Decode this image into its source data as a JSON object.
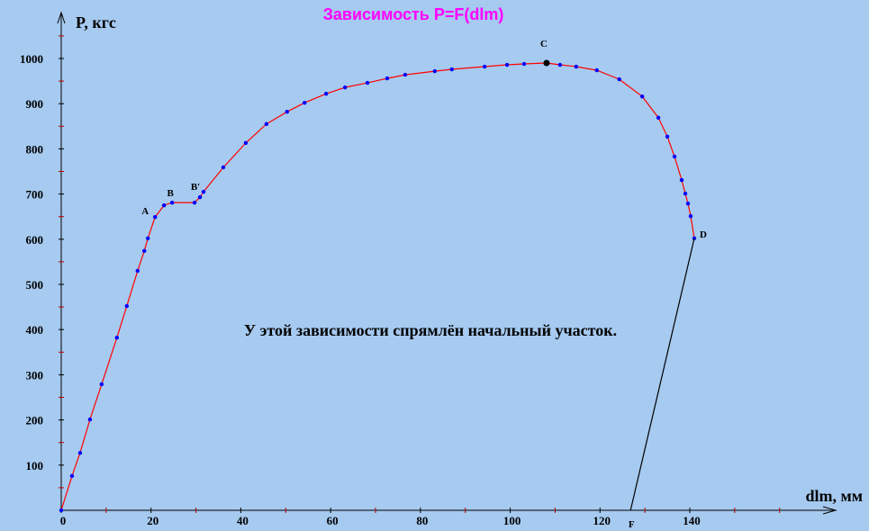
{
  "chart_data": {
    "type": "line",
    "title": "Зависимость P=F(dlm)",
    "y_label": "P, кгс",
    "x_label": "dlm, мм",
    "note": "У этой зависимости спрямлён начальный участок.",
    "xlim": [
      0,
      172
    ],
    "ylim": [
      0,
      1100
    ],
    "xticks": [
      0,
      20,
      40,
      60,
      80,
      100,
      120,
      140
    ],
    "yticks": [
      100,
      200,
      300,
      400,
      500,
      600,
      700,
      800,
      900,
      1000
    ],
    "xminorticks": [
      10,
      30,
      50,
      70,
      90,
      110,
      130,
      150,
      160
    ],
    "yminorticks": [
      50,
      150,
      250,
      350,
      450,
      550,
      650,
      750,
      850,
      950,
      1050
    ],
    "series": [
      {
        "color": "#ff0000",
        "marker_color": "#0000ff",
        "x": [
          0,
          2.4,
          4.2,
          6.4,
          9.0,
          12.4,
          14.6,
          17.0,
          18.5,
          19.3,
          20.9,
          22.9,
          24.7,
          29.7,
          30.9,
          31.7,
          36.1,
          41.1,
          45.7,
          50.3,
          54.2,
          59.0,
          63.2,
          68.2,
          72.6,
          76.6,
          83.2,
          87.0,
          94.3,
          99.3,
          103.1,
          108.1,
          111.1,
          114.7,
          119.3,
          124.3,
          129.4,
          133.0,
          135.0,
          136.6,
          138.2,
          139.0,
          139.6,
          140.2,
          141.0
        ],
        "values": [
          0,
          76,
          127,
          201,
          279,
          382,
          452,
          530,
          574,
          602,
          649,
          675,
          681,
          681,
          693,
          705,
          759,
          813,
          855,
          882,
          902,
          922,
          936,
          946,
          956,
          964,
          972,
          976,
          982,
          986,
          988,
          990,
          986,
          982,
          974,
          954,
          916,
          869,
          827,
          783,
          731,
          701,
          679,
          651,
          602
        ]
      },
      {
        "color": "#000000",
        "x": [
          141.0,
          126.8
        ],
        "values": [
          602,
          0
        ]
      }
    ],
    "annotations": [
      {
        "text": "A",
        "x": 20.9,
        "y": 649
      },
      {
        "text": "B",
        "x": 24.7,
        "y": 681
      },
      {
        "text": "B′",
        "x": 30.9,
        "y": 693
      },
      {
        "text": "C",
        "x": 108.1,
        "y": 990,
        "marker": true
      },
      {
        "text": "D",
        "x": 141.0,
        "y": 602
      },
      {
        "text": "F",
        "x": 126.8,
        "y": 0
      }
    ]
  }
}
